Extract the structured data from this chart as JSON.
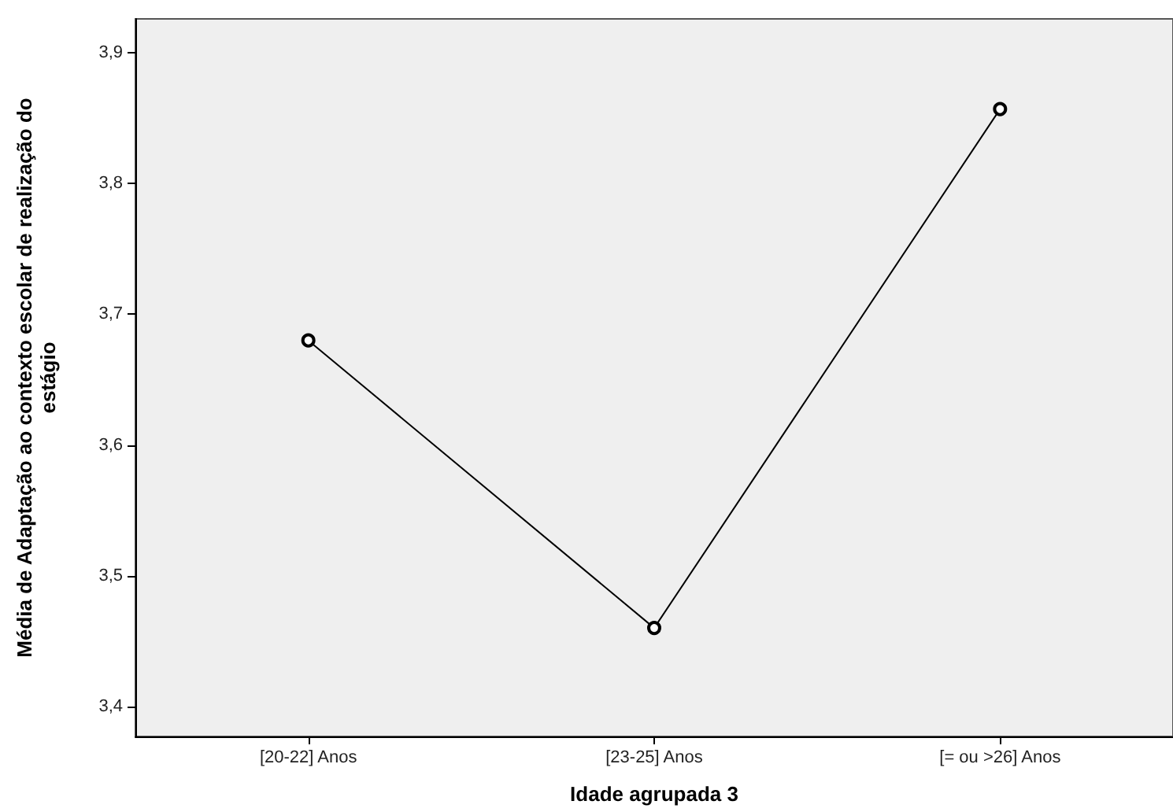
{
  "chart_data": {
    "type": "line",
    "xlabel": "Idade agrupada 3",
    "ylabel": "Média de Adaptação ao contexto escolar de realização do\nestágio",
    "categories": [
      "[20-22] Anos",
      "[23-25] Anos",
      "[= ou >26] Anos"
    ],
    "series": [
      {
        "color": "#000000",
        "values": [
          3.68,
          3.46,
          3.857
        ]
      }
    ],
    "ylim": [
      3.377,
      3.926
    ],
    "yticks": [
      {
        "value": 3.4,
        "label": "3,4"
      },
      {
        "value": 3.5,
        "label": "3,5"
      },
      {
        "value": 3.6,
        "label": "3,6"
      },
      {
        "value": 3.7,
        "label": "3,7"
      },
      {
        "value": 3.8,
        "label": "3,8"
      },
      {
        "value": 3.9,
        "label": "3,9"
      }
    ],
    "grid": false,
    "marker": "circle",
    "line_style": "solid"
  }
}
